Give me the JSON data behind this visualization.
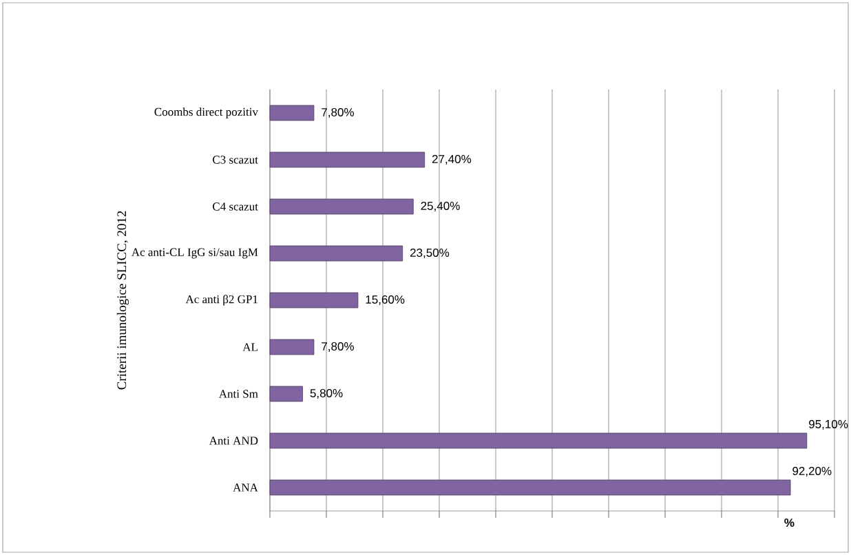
{
  "chart_data": {
    "type": "bar",
    "orientation": "horizontal",
    "categories": [
      "Coombs direct pozitiv",
      "C3 scazut",
      "C4 scazut",
      "Ac anti-CL IgG si/sau IgM",
      "Ac anti β2 GP1",
      "AL",
      "Anti Sm",
      "Anti AND",
      "ANA"
    ],
    "values": [
      7.8,
      27.4,
      25.4,
      23.5,
      15.6,
      7.8,
      5.8,
      95.1,
      92.2
    ],
    "value_labels": [
      "7,80%",
      "27,40%",
      "25,40%",
      "23,50%",
      "15,60%",
      "7,80%",
      "5,80%",
      "95,10%",
      "92,20%"
    ],
    "color": "#8064a2",
    "xlim": [
      0,
      100
    ],
    "xticks": [
      {
        "value": 0,
        "label": null
      },
      {
        "value": 10,
        "label": null
      },
      {
        "value": 20,
        "label": null
      },
      {
        "value": 30,
        "label": null
      },
      {
        "value": 40,
        "label": null
      },
      {
        "value": 50,
        "label": null
      },
      {
        "value": 60,
        "label": null
      },
      {
        "value": 70,
        "label": null
      },
      {
        "value": 80,
        "label": null
      },
      {
        "value": 90,
        "label": null
      },
      {
        "value": 100,
        "label": null
      }
    ],
    "xlabel": "%",
    "ylabel": "Criterii  imunologice SLICC, 2012",
    "grid": "x"
  }
}
